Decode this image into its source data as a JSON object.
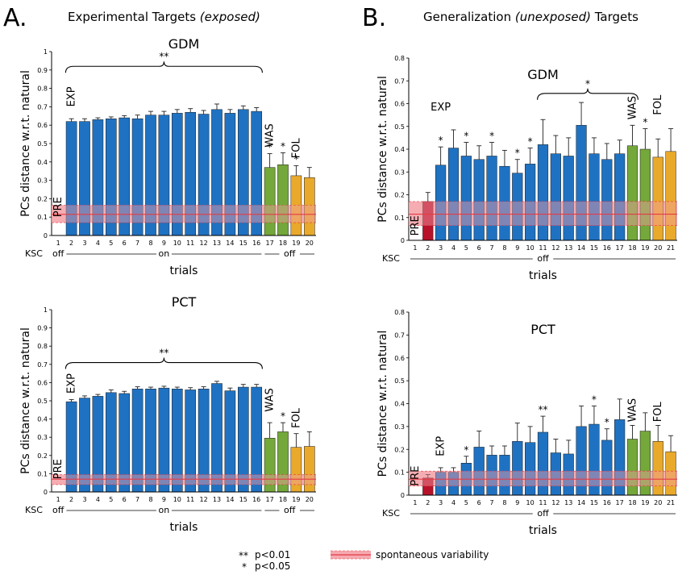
{
  "panels": [
    {
      "letter": "A.",
      "title_pre": "Experimental Targets ",
      "title_em": "(exposed)",
      "title_post": ""
    },
    {
      "letter": "B.",
      "title_pre": "Generalization ",
      "title_em": "(unexposed)",
      "title_post": " Targets"
    }
  ],
  "colors": {
    "blue": "#1f72c2",
    "green": "#74a83a",
    "orange": "#e9a92b",
    "red": "#b8122a",
    "band": "#f4a0a6",
    "band_line": "#e33b46"
  },
  "legend": {
    "sig2": "p<0.01",
    "sig2_mark": "**",
    "sig1": "p<0.05",
    "sig1_mark": "*",
    "band_label": "spontaneous variability"
  },
  "chart_data": [
    {
      "type": "bar",
      "title": "GDM",
      "ylabel": "PCs distance w.r.t. natural",
      "xlabel": "trials",
      "ylim": [
        0,
        1
      ],
      "yticks": [
        "0",
        "0.1",
        "0.2",
        "0.3",
        "0.4",
        "0.5",
        "0.6",
        "0.7",
        "0.8",
        "0.9",
        "1"
      ],
      "x": [
        "1",
        "2",
        "3",
        "4",
        "5",
        "6",
        "7",
        "8",
        "9",
        "10",
        "11",
        "12",
        "13",
        "14",
        "15",
        "16",
        "17",
        "18",
        "19",
        "20"
      ],
      "values": [
        null,
        0.62,
        0.62,
        0.63,
        0.635,
        0.64,
        0.635,
        0.655,
        0.655,
        0.665,
        0.67,
        0.66,
        0.685,
        0.665,
        0.685,
        0.675,
        0.37,
        0.385,
        0.325,
        0.315
      ],
      "errors": [
        null,
        0.015,
        0.015,
        0.01,
        0.01,
        0.012,
        0.02,
        0.02,
        0.02,
        0.02,
        0.02,
        0.02,
        0.03,
        0.02,
        0.02,
        0.02,
        0.075,
        0.065,
        0.055,
        0.055
      ],
      "bar_colors": [
        "none",
        "blue",
        "blue",
        "blue",
        "blue",
        "blue",
        "blue",
        "blue",
        "blue",
        "blue",
        "blue",
        "blue",
        "blue",
        "blue",
        "blue",
        "blue",
        "green",
        "green",
        "orange",
        "orange"
      ],
      "band": {
        "low": 0.07,
        "mid": 0.115,
        "high": 0.165
      },
      "stars": [
        {
          "x": "17",
          "text": "*"
        },
        {
          "x": "18",
          "text": "*"
        },
        {
          "x": "19",
          "text": "*"
        }
      ],
      "bracket": {
        "from": "2",
        "to": "16",
        "text": "**",
        "y": 0.92
      },
      "labels": [
        {
          "text": "EXP",
          "x": "2",
          "y": 0.7,
          "rotate": true
        },
        {
          "text": "WAS",
          "x": "17",
          "y": 0.48,
          "rotate": true
        },
        {
          "text": "FOL",
          "x": "19",
          "y": 0.42,
          "rotate": true
        },
        {
          "text": "PRE",
          "x": "1",
          "y": 0.1,
          "rotate": true
        }
      ],
      "ksc_label": "KSC",
      "ksc": [
        {
          "text": "off",
          "from": "1",
          "to": "1"
        },
        {
          "text": "on",
          "from": "2",
          "to": "16"
        },
        {
          "text": "off",
          "from": "17",
          "to": "20"
        }
      ]
    },
    {
      "type": "bar",
      "title": "PCT",
      "ylabel": "PCs distance w.r.t. natural",
      "xlabel": "trials",
      "ylim": [
        0,
        1
      ],
      "yticks": [
        "0",
        "0.1",
        "0.2",
        "0.3",
        "0.4",
        "0.5",
        "0.6",
        "0.7",
        "0.8",
        "0.9",
        "1"
      ],
      "x": [
        "1",
        "2",
        "3",
        "4",
        "5",
        "6",
        "7",
        "8",
        "9",
        "10",
        "11",
        "12",
        "13",
        "14",
        "15",
        "16",
        "17",
        "18",
        "19",
        "20"
      ],
      "values": [
        null,
        0.495,
        0.515,
        0.525,
        0.545,
        0.54,
        0.565,
        0.565,
        0.57,
        0.565,
        0.56,
        0.565,
        0.595,
        0.555,
        0.575,
        0.575,
        0.295,
        0.33,
        0.245,
        0.25
      ],
      "errors": [
        null,
        0.012,
        0.012,
        0.01,
        0.015,
        0.012,
        0.012,
        0.01,
        0.01,
        0.01,
        0.012,
        0.012,
        0.012,
        0.015,
        0.015,
        0.015,
        0.085,
        0.05,
        0.075,
        0.08
      ],
      "bar_colors": [
        "none",
        "blue",
        "blue",
        "blue",
        "blue",
        "blue",
        "blue",
        "blue",
        "blue",
        "blue",
        "blue",
        "blue",
        "blue",
        "blue",
        "blue",
        "blue",
        "green",
        "green",
        "orange",
        "orange"
      ],
      "band": {
        "low": 0.04,
        "mid": 0.07,
        "high": 0.095
      },
      "stars": [
        {
          "x": "18",
          "text": "*"
        }
      ],
      "bracket": {
        "from": "2",
        "to": "16",
        "text": "**",
        "y": 0.71
      },
      "labels": [
        {
          "text": "EXP",
          "x": "2",
          "y": 0.54,
          "rotate": true
        },
        {
          "text": "WAS",
          "x": "17",
          "y": 0.44,
          "rotate": true
        },
        {
          "text": "FOL",
          "x": "19",
          "y": 0.35,
          "rotate": true
        },
        {
          "text": "PRE",
          "x": "1",
          "y": 0.07,
          "rotate": true
        }
      ],
      "ksc_label": "KSC",
      "ksc": [
        {
          "text": "off",
          "from": "1",
          "to": "1"
        },
        {
          "text": "on",
          "from": "2",
          "to": "16"
        },
        {
          "text": "off",
          "from": "17",
          "to": "20"
        }
      ]
    },
    {
      "type": "bar",
      "title": "GDM",
      "ylabel": "PCs distance w.r.t. natural",
      "xlabel": "trials",
      "ylim": [
        0,
        0.8
      ],
      "yticks": [
        "0",
        "0.1",
        "0.2",
        "0.3",
        "0.4",
        "0.5",
        "0.6",
        "0.7",
        "0.8"
      ],
      "x": [
        "1",
        "2",
        "3",
        "4",
        "5",
        "6",
        "7",
        "8",
        "9",
        "10",
        "11",
        "12",
        "13",
        "14",
        "15",
        "16",
        "17",
        "18",
        "19",
        "20",
        "21"
      ],
      "values": [
        null,
        0.17,
        0.33,
        0.405,
        0.37,
        0.355,
        0.37,
        0.325,
        0.295,
        0.335,
        0.42,
        0.38,
        0.37,
        0.505,
        0.38,
        0.355,
        0.38,
        0.415,
        0.4,
        0.365,
        0.39
      ],
      "errors": [
        null,
        0.04,
        0.08,
        0.08,
        0.06,
        0.06,
        0.06,
        0.07,
        0.06,
        0.07,
        0.11,
        0.08,
        0.08,
        0.1,
        0.07,
        0.07,
        0.06,
        0.09,
        0.09,
        0.08,
        0.1
      ],
      "bar_colors": [
        "none",
        "red",
        "blue",
        "blue",
        "blue",
        "blue",
        "blue",
        "blue",
        "blue",
        "blue",
        "blue",
        "blue",
        "blue",
        "blue",
        "blue",
        "blue",
        "blue",
        "green",
        "green",
        "orange",
        "orange"
      ],
      "band": {
        "low": 0.065,
        "mid": 0.115,
        "high": 0.17
      },
      "stars": [
        {
          "x": "3",
          "text": "*"
        },
        {
          "x": "5",
          "text": "*"
        },
        {
          "x": "7",
          "text": "*"
        },
        {
          "x": "9",
          "text": "*"
        },
        {
          "x": "10",
          "text": "*"
        },
        {
          "x": "19",
          "text": "*"
        }
      ],
      "bracket": {
        "from": "11",
        "to": "18",
        "text": "*",
        "y": 0.645
      },
      "labels": [
        {
          "text": "EXP",
          "x": "3",
          "y": 0.57,
          "rotate": false
        },
        {
          "text": "WAS",
          "x": "18",
          "y": 0.53,
          "rotate": true
        },
        {
          "text": "FOL",
          "x": "20",
          "y": 0.55,
          "rotate": true
        },
        {
          "text": "PRE",
          "x": "1",
          "y": 0.02,
          "rotate": true
        }
      ],
      "ksc_label": "KSC",
      "ksc": [
        {
          "text": "off",
          "from": "1",
          "to": "21"
        }
      ]
    },
    {
      "type": "bar",
      "title": "PCT",
      "ylabel": "PCs distance w.r.t. natural",
      "xlabel": "trials",
      "ylim": [
        0,
        0.8
      ],
      "yticks": [
        "0",
        "0.1",
        "0.2",
        "0.3",
        "0.4",
        "0.5",
        "0.6",
        "0.7",
        "0.8"
      ],
      "x": [
        "1",
        "2",
        "3",
        "4",
        "5",
        "6",
        "7",
        "8",
        "9",
        "10",
        "11",
        "12",
        "13",
        "14",
        "15",
        "16",
        "17",
        "18",
        "19",
        "20",
        "21"
      ],
      "values": [
        null,
        0.075,
        0.1,
        0.1,
        0.14,
        0.21,
        0.175,
        0.175,
        0.235,
        0.23,
        0.275,
        0.185,
        0.18,
        0.3,
        0.31,
        0.24,
        0.33,
        0.245,
        0.28,
        0.235,
        0.19
      ],
      "errors": [
        null,
        0.015,
        0.02,
        0.02,
        0.03,
        0.07,
        0.04,
        0.04,
        0.08,
        0.07,
        0.07,
        0.06,
        0.06,
        0.09,
        0.08,
        0.05,
        0.09,
        0.06,
        0.08,
        0.07,
        0.07
      ],
      "bar_colors": [
        "none",
        "red",
        "blue",
        "blue",
        "blue",
        "blue",
        "blue",
        "blue",
        "blue",
        "blue",
        "blue",
        "blue",
        "blue",
        "blue",
        "blue",
        "blue",
        "blue",
        "green",
        "green",
        "orange",
        "orange"
      ],
      "band": {
        "low": 0.04,
        "mid": 0.07,
        "high": 0.105
      },
      "stars": [
        {
          "x": "5",
          "text": "*"
        },
        {
          "x": "11",
          "text": "**"
        },
        {
          "x": "15",
          "text": "*"
        },
        {
          "x": "16",
          "text": "*"
        }
      ],
      "labels": [
        {
          "text": "EXP",
          "x": "3",
          "y": 0.17,
          "rotate": true
        },
        {
          "text": "WAS",
          "x": "18",
          "y": 0.32,
          "rotate": true
        },
        {
          "text": "FOL",
          "x": "20",
          "y": 0.32,
          "rotate": true
        },
        {
          "text": "PRE",
          "x": "1",
          "y": 0.04,
          "rotate": true
        }
      ],
      "ksc_label": "KSC",
      "ksc": [
        {
          "text": "off",
          "from": "1",
          "to": "21"
        }
      ]
    }
  ]
}
